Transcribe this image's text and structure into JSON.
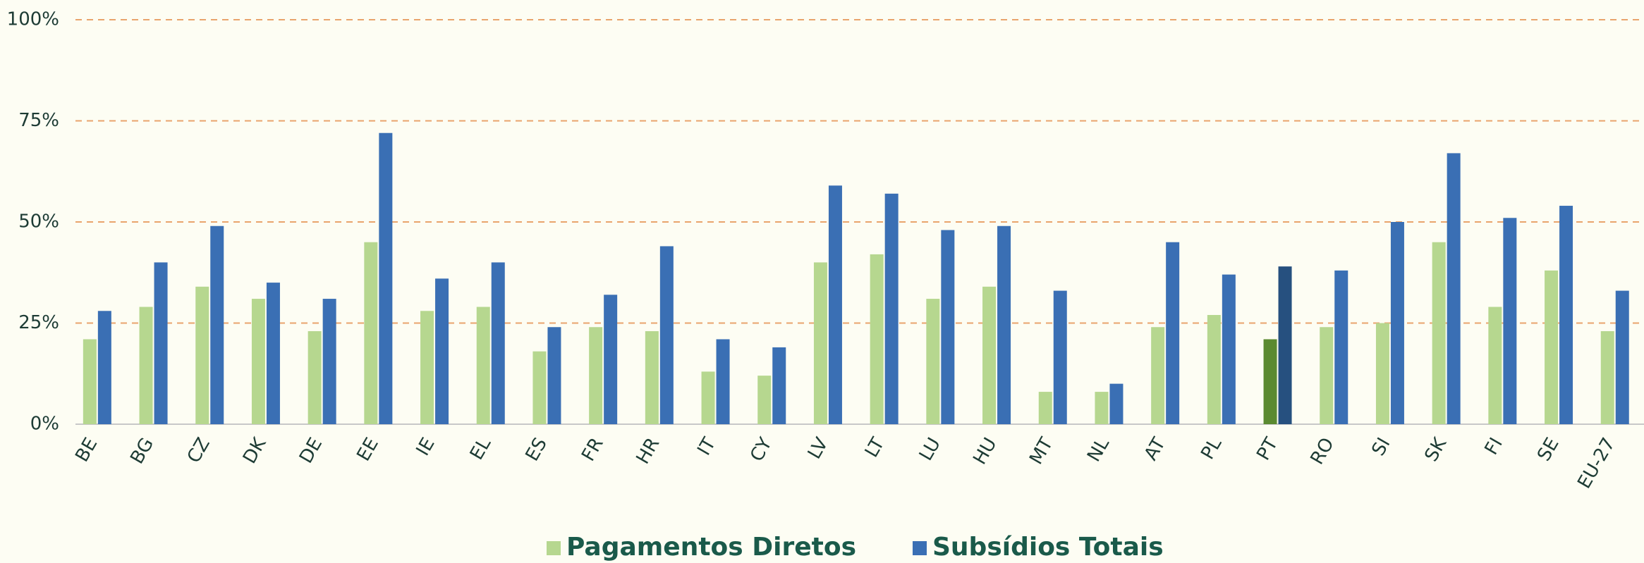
{
  "chart_data": {
    "type": "bar",
    "categories": [
      "BE",
      "BG",
      "CZ",
      "DK",
      "DE",
      "EE",
      "IE",
      "EL",
      "ES",
      "FR",
      "HR",
      "IT",
      "CY",
      "LV",
      "LT",
      "LU",
      "HU",
      "MT",
      "NL",
      "AT",
      "PL",
      "PT",
      "RO",
      "SI",
      "SK",
      "FI",
      "SE",
      "EU-27"
    ],
    "series": [
      {
        "name": "Pagamentos Diretos",
        "color": "#b6d78f",
        "colors": [
          "#b6d78f",
          "#b6d78f",
          "#b6d78f",
          "#b6d78f",
          "#b6d78f",
          "#b6d78f",
          "#b6d78f",
          "#b6d78f",
          "#b6d78f",
          "#b6d78f",
          "#b6d78f",
          "#b6d78f",
          "#b6d78f",
          "#b6d78f",
          "#b6d78f",
          "#b6d78f",
          "#b6d78f",
          "#b6d78f",
          "#b6d78f",
          "#b6d78f",
          "#b6d78f",
          "#5b8a30",
          "#b6d78f",
          "#b6d78f",
          "#b6d78f",
          "#b6d78f",
          "#b6d78f",
          "#b6d78f"
        ],
        "values": [
          21,
          29,
          34,
          31,
          23,
          45,
          28,
          29,
          18,
          24,
          23,
          13,
          12,
          40,
          42,
          31,
          34,
          8,
          8,
          24,
          27,
          21,
          24,
          25,
          45,
          29,
          38,
          23
        ]
      },
      {
        "name": "Subsídios Totais",
        "color": "#3a6fb4",
        "colors": [
          "#3a6fb4",
          "#3a6fb4",
          "#3a6fb4",
          "#3a6fb4",
          "#3a6fb4",
          "#3a6fb4",
          "#3a6fb4",
          "#3a6fb4",
          "#3a6fb4",
          "#3a6fb4",
          "#3a6fb4",
          "#3a6fb4",
          "#3a6fb4",
          "#3a6fb4",
          "#3a6fb4",
          "#3a6fb4",
          "#3a6fb4",
          "#3a6fb4",
          "#3a6fb4",
          "#3a6fb4",
          "#3a6fb4",
          "#26507f",
          "#3a6fb4",
          "#3a6fb4",
          "#3a6fb4",
          "#3a6fb4",
          "#3a6fb4",
          "#3a6fb4"
        ],
        "values": [
          28,
          40,
          49,
          35,
          31,
          72,
          36,
          40,
          24,
          32,
          44,
          21,
          19,
          59,
          57,
          48,
          49,
          33,
          10,
          45,
          37,
          39,
          38,
          50,
          67,
          51,
          54,
          33
        ]
      }
    ],
    "ylim": [
      0,
      100
    ],
    "yticks": [
      {
        "value": 0,
        "label": "0%"
      },
      {
        "value": 25,
        "label": "25%"
      },
      {
        "value": 50,
        "label": "50%"
      },
      {
        "value": 75,
        "label": "75%"
      },
      {
        "value": 100,
        "label": "100%"
      }
    ],
    "grid": true,
    "legend": "bottom"
  }
}
